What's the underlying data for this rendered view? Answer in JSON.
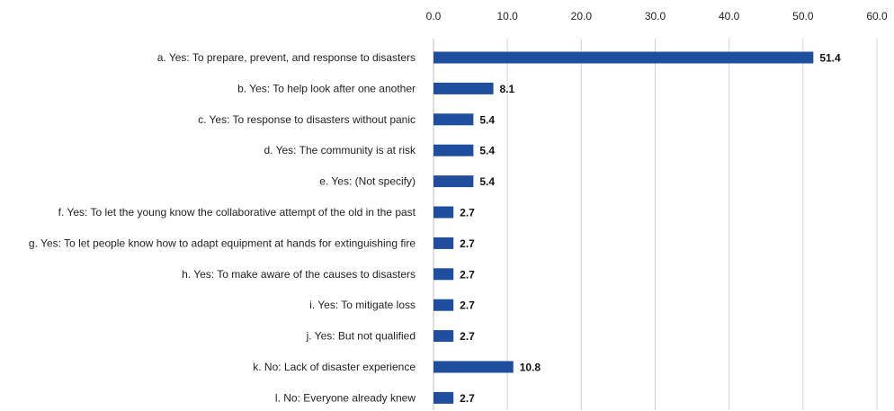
{
  "chart_data": {
    "type": "bar",
    "orientation": "horizontal",
    "title": "",
    "xlabel": "",
    "ylabel": "",
    "xlim": [
      0,
      60
    ],
    "x_ticks": [
      "0.0",
      "10.0",
      "20.0",
      "30.0",
      "40.0",
      "50.0",
      "60.0"
    ],
    "x_axis_position": "top",
    "grid": true,
    "legend": "none",
    "bar_color": "#1f4e9e",
    "categories": [
      "a. Yes: To prepare, prevent, and response to disasters",
      "b. Yes: To help look after one another",
      "c. Yes: To response to disasters without panic",
      "d. Yes: The community is at risk",
      "e. Yes: (Not specify)",
      "f. Yes: To let the young  know the collaborative attempt of the old in the past",
      "g. Yes: To let people know how to adapt equipment at hands for extinguishing fire",
      "h. Yes: To make aware of the causes to disasters",
      "i. Yes: To mitigate loss",
      "j. Yes: But not qualified",
      "k. No: Lack of disaster experience",
      "l. No: Everyone already knew"
    ],
    "values": [
      51.4,
      8.1,
      5.4,
      5.4,
      5.4,
      2.7,
      2.7,
      2.7,
      2.7,
      2.7,
      10.8,
      2.7
    ],
    "data_labels": [
      "51.4",
      "8.1",
      "5.4",
      "5.4",
      "5.4",
      "2.7",
      "2.7",
      "2.7",
      "2.7",
      "2.7",
      "10.8",
      "2.7"
    ]
  }
}
